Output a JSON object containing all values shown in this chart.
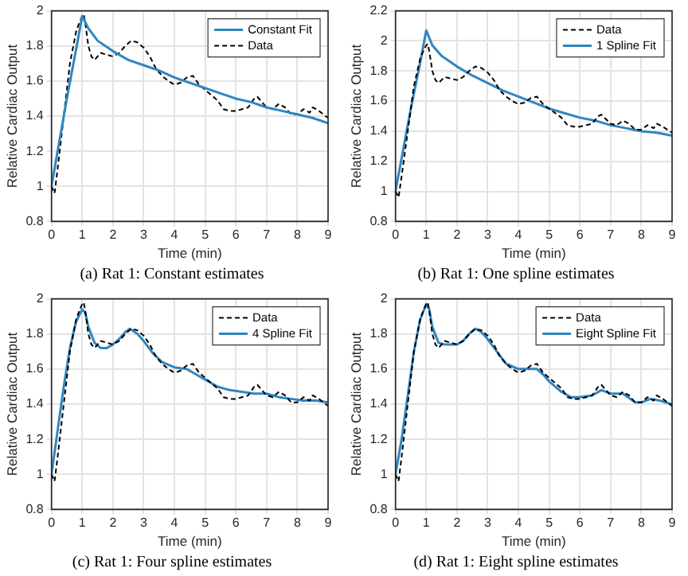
{
  "chart_data": [
    {
      "type": "line",
      "xlabel": "Time (min)",
      "ylabel": "Relative Cardiac Output",
      "annotations": [
        "(a) Rat 1: Constant estimates"
      ],
      "xlim": [
        0,
        9
      ],
      "xticks": [
        0,
        1,
        2,
        3,
        4,
        5,
        6,
        7,
        8,
        9
      ],
      "ylim": [
        0.8,
        2
      ],
      "yticks": [
        0.8,
        1,
        1.2,
        1.4,
        1.6,
        1.8,
        2
      ],
      "grid": true,
      "legend": "top right",
      "series": [
        {
          "name": "Constant Fit",
          "color": "#2e86c1",
          "line_style": "solid",
          "x": [
            0,
            0.2,
            0.5,
            0.8,
            1,
            1.2,
            1.5,
            2,
            2.5,
            3,
            3.5,
            4,
            4.5,
            5,
            5.5,
            6,
            6.5,
            7,
            7.5,
            8,
            8.5,
            9
          ],
          "values": [
            1.0,
            1.2,
            1.5,
            1.78,
            1.97,
            1.9,
            1.83,
            1.77,
            1.72,
            1.69,
            1.66,
            1.62,
            1.59,
            1.56,
            1.53,
            1.5,
            1.48,
            1.45,
            1.43,
            1.41,
            1.39,
            1.36
          ]
        },
        {
          "name": "Data",
          "color": "#000000",
          "line_style": "dashed",
          "x": [
            0,
            0.1,
            0.2,
            0.4,
            0.6,
            0.8,
            0.9,
            1,
            1.05,
            1.1,
            1.2,
            1.3,
            1.4,
            1.5,
            1.6,
            1.8,
            2,
            2.2,
            2.4,
            2.6,
            2.8,
            3,
            3.2,
            3.4,
            3.6,
            3.8,
            4,
            4.2,
            4.4,
            4.6,
            4.8,
            5,
            5.2,
            5.4,
            5.6,
            5.8,
            6,
            6.2,
            6.4,
            6.6,
            6.7,
            6.8,
            7,
            7.2,
            7.4,
            7.6,
            7.8,
            8,
            8.2,
            8.4,
            8.5,
            8.7,
            9
          ],
          "values": [
            1.0,
            0.96,
            1.1,
            1.4,
            1.7,
            1.88,
            1.93,
            1.97,
            1.98,
            1.93,
            1.8,
            1.74,
            1.72,
            1.74,
            1.76,
            1.75,
            1.74,
            1.76,
            1.8,
            1.83,
            1.82,
            1.79,
            1.74,
            1.67,
            1.63,
            1.6,
            1.58,
            1.59,
            1.62,
            1.63,
            1.58,
            1.55,
            1.52,
            1.49,
            1.44,
            1.43,
            1.43,
            1.44,
            1.45,
            1.5,
            1.51,
            1.49,
            1.45,
            1.44,
            1.47,
            1.45,
            1.41,
            1.41,
            1.44,
            1.42,
            1.45,
            1.43,
            1.39
          ]
        }
      ]
    },
    {
      "type": "line",
      "xlabel": "Time (min)",
      "ylabel": "Relative Cardiac Output",
      "annotations": [
        "(b) Rat 1: One spline estimates"
      ],
      "xlim": [
        0,
        9
      ],
      "xticks": [
        0,
        1,
        2,
        3,
        4,
        5,
        6,
        7,
        8,
        9
      ],
      "ylim": [
        0.8,
        2.2
      ],
      "yticks": [
        0.8,
        1,
        1.2,
        1.4,
        1.6,
        1.8,
        2,
        2.2
      ],
      "grid": true,
      "legend": "top right",
      "series": [
        {
          "name": "Data",
          "color": "#000000",
          "line_style": "dashed",
          "x": [
            0,
            0.1,
            0.2,
            0.4,
            0.6,
            0.8,
            0.9,
            1,
            1.05,
            1.1,
            1.2,
            1.3,
            1.4,
            1.5,
            1.6,
            1.8,
            2,
            2.2,
            2.4,
            2.6,
            2.8,
            3,
            3.2,
            3.4,
            3.6,
            3.8,
            4,
            4.2,
            4.4,
            4.6,
            4.8,
            5,
            5.2,
            5.4,
            5.6,
            5.8,
            6,
            6.2,
            6.4,
            6.6,
            6.7,
            6.8,
            7,
            7.2,
            7.4,
            7.6,
            7.8,
            8,
            8.2,
            8.4,
            8.5,
            8.7,
            9
          ],
          "values": [
            1.0,
            0.96,
            1.1,
            1.4,
            1.7,
            1.88,
            1.93,
            1.97,
            1.98,
            1.93,
            1.8,
            1.74,
            1.72,
            1.74,
            1.76,
            1.75,
            1.74,
            1.76,
            1.8,
            1.83,
            1.82,
            1.79,
            1.74,
            1.67,
            1.63,
            1.6,
            1.58,
            1.59,
            1.62,
            1.63,
            1.58,
            1.55,
            1.52,
            1.49,
            1.44,
            1.43,
            1.43,
            1.44,
            1.45,
            1.5,
            1.51,
            1.49,
            1.45,
            1.44,
            1.47,
            1.45,
            1.41,
            1.41,
            1.44,
            1.42,
            1.45,
            1.43,
            1.39
          ]
        },
        {
          "name": "1 Spline Fit",
          "color": "#2e86c1",
          "line_style": "solid",
          "x": [
            0,
            0.2,
            0.5,
            0.8,
            1,
            1.2,
            1.5,
            2,
            2.5,
            3,
            3.5,
            4,
            4.5,
            5,
            5.5,
            6,
            6.5,
            7,
            7.5,
            8,
            8.5,
            9
          ],
          "values": [
            1.0,
            1.22,
            1.55,
            1.85,
            2.07,
            1.97,
            1.9,
            1.83,
            1.77,
            1.72,
            1.67,
            1.63,
            1.59,
            1.55,
            1.52,
            1.49,
            1.47,
            1.44,
            1.42,
            1.4,
            1.39,
            1.37
          ]
        }
      ]
    },
    {
      "type": "line",
      "xlabel": "Time (min)",
      "ylabel": "Relative Cardiac Output",
      "annotations": [
        "(c) Rat 1: Four spline estimates"
      ],
      "xlim": [
        0,
        9
      ],
      "xticks": [
        0,
        1,
        2,
        3,
        4,
        5,
        6,
        7,
        8,
        9
      ],
      "ylim": [
        0.8,
        2
      ],
      "yticks": [
        0.8,
        1,
        1.2,
        1.4,
        1.6,
        1.8,
        2
      ],
      "grid": true,
      "legend": "top right",
      "series": [
        {
          "name": "Data",
          "color": "#000000",
          "line_style": "dashed",
          "x": [
            0,
            0.1,
            0.2,
            0.4,
            0.6,
            0.8,
            0.9,
            1,
            1.05,
            1.1,
            1.2,
            1.3,
            1.4,
            1.5,
            1.6,
            1.8,
            2,
            2.2,
            2.4,
            2.6,
            2.8,
            3,
            3.2,
            3.4,
            3.6,
            3.8,
            4,
            4.2,
            4.4,
            4.6,
            4.8,
            5,
            5.2,
            5.4,
            5.6,
            5.8,
            6,
            6.2,
            6.4,
            6.6,
            6.7,
            6.8,
            7,
            7.2,
            7.4,
            7.6,
            7.8,
            8,
            8.2,
            8.4,
            8.5,
            8.7,
            9
          ],
          "values": [
            1.0,
            0.96,
            1.1,
            1.4,
            1.7,
            1.88,
            1.93,
            1.97,
            1.98,
            1.93,
            1.8,
            1.74,
            1.72,
            1.74,
            1.76,
            1.75,
            1.74,
            1.76,
            1.8,
            1.83,
            1.82,
            1.79,
            1.74,
            1.67,
            1.63,
            1.6,
            1.58,
            1.59,
            1.62,
            1.63,
            1.58,
            1.55,
            1.52,
            1.49,
            1.44,
            1.43,
            1.43,
            1.44,
            1.45,
            1.5,
            1.51,
            1.49,
            1.45,
            1.44,
            1.47,
            1.45,
            1.41,
            1.41,
            1.44,
            1.42,
            1.45,
            1.43,
            1.39
          ]
        },
        {
          "name": "4 Spline Fit",
          "color": "#2e86c1",
          "line_style": "solid",
          "x": [
            0,
            0.2,
            0.4,
            0.6,
            0.8,
            1,
            1.1,
            1.2,
            1.4,
            1.6,
            1.8,
            2,
            2.2,
            2.4,
            2.55,
            2.8,
            3,
            3.3,
            3.6,
            4,
            4.4,
            4.6,
            5,
            5.4,
            5.8,
            6.2,
            6.6,
            7,
            7.4,
            7.8,
            8.2,
            8.6,
            9
          ],
          "values": [
            1.0,
            1.25,
            1.5,
            1.72,
            1.87,
            1.94,
            1.92,
            1.84,
            1.75,
            1.72,
            1.72,
            1.74,
            1.77,
            1.81,
            1.83,
            1.8,
            1.76,
            1.69,
            1.64,
            1.61,
            1.6,
            1.58,
            1.54,
            1.5,
            1.48,
            1.47,
            1.46,
            1.46,
            1.44,
            1.43,
            1.42,
            1.42,
            1.41
          ]
        }
      ]
    },
    {
      "type": "line",
      "xlabel": "Time (min)",
      "ylabel": "Relative Cardiac Output",
      "annotations": [
        "(d) Rat 1: Eight spline estimates"
      ],
      "xlim": [
        0,
        9
      ],
      "xticks": [
        0,
        1,
        2,
        3,
        4,
        5,
        6,
        7,
        8,
        9
      ],
      "ylim": [
        0.8,
        2
      ],
      "yticks": [
        0.8,
        1,
        1.2,
        1.4,
        1.6,
        1.8,
        2
      ],
      "grid": true,
      "legend": "top right",
      "series": [
        {
          "name": "Data",
          "color": "#000000",
          "line_style": "dashed",
          "x": [
            0,
            0.1,
            0.2,
            0.4,
            0.6,
            0.8,
            0.9,
            1,
            1.05,
            1.1,
            1.2,
            1.3,
            1.4,
            1.5,
            1.6,
            1.8,
            2,
            2.2,
            2.4,
            2.6,
            2.8,
            3,
            3.2,
            3.4,
            3.6,
            3.8,
            4,
            4.2,
            4.4,
            4.6,
            4.8,
            5,
            5.2,
            5.4,
            5.6,
            5.8,
            6,
            6.2,
            6.4,
            6.6,
            6.7,
            6.8,
            7,
            7.2,
            7.4,
            7.6,
            7.8,
            8,
            8.2,
            8.4,
            8.5,
            8.7,
            9
          ],
          "values": [
            1.0,
            0.96,
            1.1,
            1.4,
            1.7,
            1.88,
            1.93,
            1.97,
            1.98,
            1.93,
            1.8,
            1.74,
            1.72,
            1.74,
            1.76,
            1.75,
            1.74,
            1.76,
            1.8,
            1.83,
            1.82,
            1.79,
            1.74,
            1.67,
            1.63,
            1.6,
            1.58,
            1.59,
            1.62,
            1.63,
            1.58,
            1.55,
            1.52,
            1.49,
            1.44,
            1.43,
            1.43,
            1.44,
            1.45,
            1.5,
            1.51,
            1.49,
            1.45,
            1.44,
            1.47,
            1.45,
            1.41,
            1.41,
            1.44,
            1.42,
            1.45,
            1.43,
            1.39
          ]
        },
        {
          "name": "Eight Spline Fit",
          "color": "#2e86c1",
          "line_style": "solid",
          "x": [
            0,
            0.2,
            0.4,
            0.6,
            0.8,
            1,
            1.1,
            1.2,
            1.4,
            1.6,
            2,
            2.2,
            2.4,
            2.6,
            2.8,
            3,
            3.3,
            3.6,
            4,
            4.4,
            4.6,
            4.8,
            5,
            5.4,
            5.7,
            6,
            6.4,
            6.7,
            7,
            7.4,
            7.8,
            8,
            8.3,
            8.6,
            9
          ],
          "values": [
            1.0,
            1.2,
            1.45,
            1.7,
            1.88,
            1.97,
            1.94,
            1.84,
            1.75,
            1.74,
            1.74,
            1.76,
            1.8,
            1.83,
            1.81,
            1.77,
            1.7,
            1.63,
            1.6,
            1.6,
            1.6,
            1.57,
            1.53,
            1.47,
            1.44,
            1.44,
            1.45,
            1.48,
            1.46,
            1.46,
            1.41,
            1.41,
            1.43,
            1.42,
            1.4
          ]
        }
      ]
    }
  ]
}
